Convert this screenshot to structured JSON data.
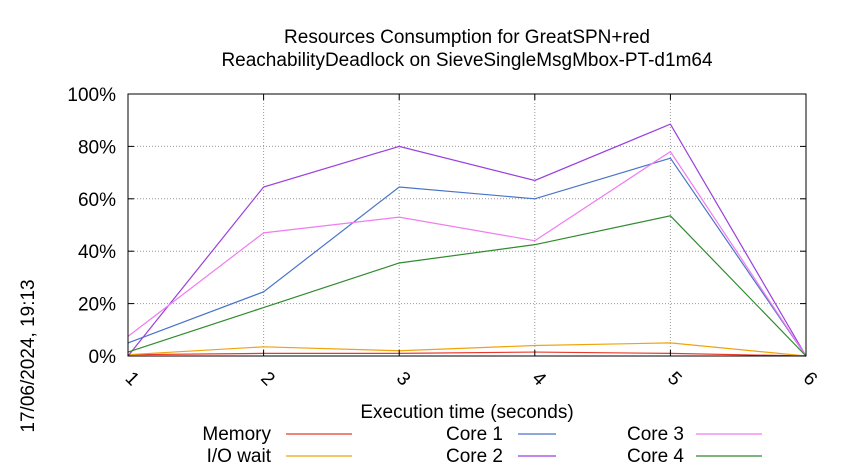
{
  "chart_data": {
    "type": "line",
    "title": "Resources Consumption for GreatSPN+red",
    "subtitle": "ReachabilityDeadlock on SieveSingleMsgMbox-PT-d1m64",
    "xlabel": "Execution time (seconds)",
    "ylabel": "",
    "timestamp": "17/06/2024, 19:13",
    "x": [
      1,
      2,
      3,
      4,
      5,
      6
    ],
    "xlim": [
      1,
      6
    ],
    "ylim": [
      0,
      100
    ],
    "x_ticks": [
      "1",
      "2",
      "3",
      "4",
      "5",
      "6"
    ],
    "y_ticks": [
      "0%",
      "20%",
      "40%",
      "60%",
      "80%",
      "100%"
    ],
    "grid": true,
    "legend_position": "bottom",
    "series": [
      {
        "name": "Memory",
        "color": "#e8392b",
        "values": [
          0.5,
          1,
          1,
          1.5,
          1,
          0
        ]
      },
      {
        "name": "I/O wait",
        "color": "#f0a30a",
        "values": [
          0.5,
          3.5,
          2,
          4,
          5,
          0
        ]
      },
      {
        "name": "Core 1",
        "color": "#4a74c9",
        "values": [
          5,
          24.5,
          64.5,
          60,
          75.5,
          0
        ]
      },
      {
        "name": "Core 2",
        "color": "#9b3fdc",
        "values": [
          0,
          64.5,
          80,
          67,
          88.5,
          0
        ]
      },
      {
        "name": "Core 3",
        "color": "#f07cf0",
        "values": [
          7.5,
          47,
          53,
          44,
          78,
          0
        ]
      },
      {
        "name": "Core 4",
        "color": "#2e8b2e",
        "values": [
          1.5,
          18.5,
          35.5,
          42.5,
          53.5,
          0
        ]
      }
    ]
  }
}
